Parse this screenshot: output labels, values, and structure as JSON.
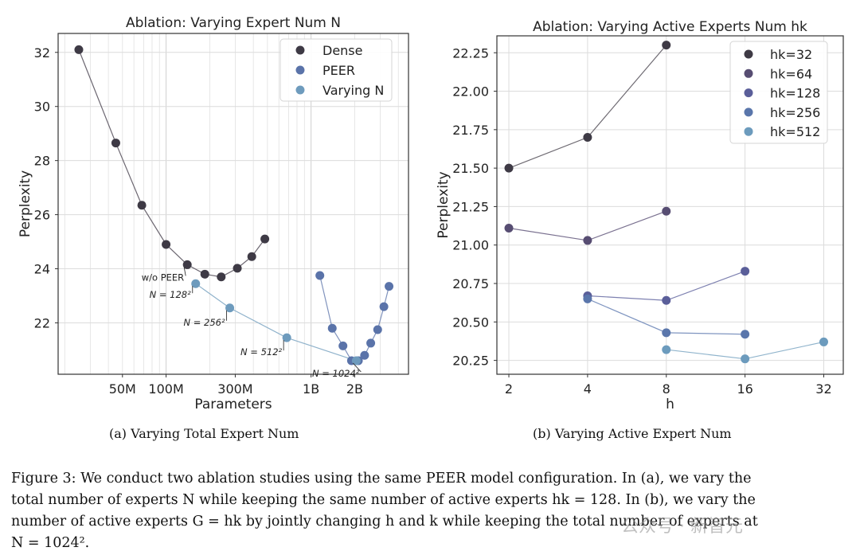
{
  "chart_data": [
    {
      "type": "scatter",
      "title": "Ablation: Varying Expert Num N",
      "xlabel": "Parameters",
      "ylabel": "Perplexity",
      "xscale": "log",
      "xlim": [
        18000000,
        4700000000
      ],
      "ylim": [
        20.1,
        32.7
      ],
      "yticks": [
        22,
        24,
        26,
        28,
        30,
        32
      ],
      "xticks": [
        {
          "value": 50000000,
          "label": "50M"
        },
        {
          "value": 100000000,
          "label": "100M"
        },
        {
          "value": 300000000,
          "label": "300M"
        },
        {
          "value": 1000000000,
          "label": "1B"
        },
        {
          "value": 2000000000,
          "label": "2B"
        }
      ],
      "grid": true,
      "legend_position": "top-right",
      "series": [
        {
          "name": "Dense",
          "color": "#3e3a45",
          "line_color": "#6b6670",
          "x": [
            25000000,
            45000000,
            68000000,
            100000000,
            140000000,
            185000000,
            240000000,
            310000000,
            390000000,
            480000000
          ],
          "y": [
            32.1,
            28.65,
            26.35,
            24.9,
            24.15,
            23.8,
            23.7,
            24.02,
            24.45,
            25.1
          ]
        },
        {
          "name": "PEER",
          "color": "#5a73a9",
          "line_color": "#8093bd",
          "x": [
            1150000000,
            1400000000,
            1660000000,
            1900000000,
            2120000000,
            2340000000,
            2580000000,
            2880000000,
            3180000000,
            3450000000
          ],
          "y": [
            23.75,
            21.8,
            21.15,
            20.6,
            20.6,
            20.8,
            21.25,
            21.75,
            22.6,
            23.35
          ]
        },
        {
          "name": "Varying N",
          "color": "#6e9bbd",
          "line_color": "#8fb2cb",
          "x": [
            160000000,
            275000000,
            680000000,
            2050000000
          ],
          "y": [
            23.45,
            22.55,
            21.45,
            20.6
          ]
        }
      ],
      "annotations": [
        {
          "text": "w/o PEER",
          "target_series": "Dense",
          "target_index": 4
        },
        {
          "text": "N = 128²",
          "target_series": "Varying N",
          "target_index": 0
        },
        {
          "text": "N = 256²",
          "target_series": "Varying N",
          "target_index": 1
        },
        {
          "text": "N = 512²",
          "target_series": "Varying N",
          "target_index": 2
        },
        {
          "text": "N = 1024²",
          "target_series": "Varying N",
          "target_index": 3
        }
      ]
    },
    {
      "type": "line",
      "title": "Ablation: Varying Active Experts Num hk",
      "xlabel": "h",
      "ylabel": "Perplexity",
      "xscale": "log2",
      "xlim": [
        1.8,
        38
      ],
      "ylim": [
        20.16,
        22.36
      ],
      "xticks": [
        2,
        4,
        8,
        16,
        32
      ],
      "yticks": [
        20.25,
        20.5,
        20.75,
        21.0,
        21.25,
        21.5,
        21.75,
        22.0,
        22.25
      ],
      "ytick_labels": [
        "20.25",
        "20.50",
        "20.75",
        "21.00",
        "21.25",
        "21.50",
        "21.75",
        "22.00",
        "22.25"
      ],
      "grid": true,
      "legend_position": "top-right",
      "series": [
        {
          "name": "hk=32",
          "color": "#3e3a45",
          "line_color": "#6e6a72",
          "x": [
            2,
            4,
            8
          ],
          "y": [
            21.5,
            21.7,
            22.3
          ]
        },
        {
          "name": "hk=64",
          "color": "#574d72",
          "line_color": "#7a7190",
          "x": [
            2,
            4,
            8
          ],
          "y": [
            21.11,
            21.03,
            21.22
          ]
        },
        {
          "name": "hk=128",
          "color": "#5a5e99",
          "line_color": "#7d80b0",
          "x": [
            4,
            8,
            16
          ],
          "y": [
            20.67,
            20.64,
            20.83
          ]
        },
        {
          "name": "hk=256",
          "color": "#5a76ab",
          "line_color": "#7f95c0",
          "x": [
            4,
            8,
            16
          ],
          "y": [
            20.65,
            20.43,
            20.42
          ]
        },
        {
          "name": "hk=512",
          "color": "#6c9bbd",
          "line_color": "#90b4cc",
          "x": [
            8,
            16,
            32
          ],
          "y": [
            20.32,
            20.26,
            20.37
          ]
        }
      ]
    }
  ],
  "subcaptions": {
    "a": "(a) Varying Total Expert Num",
    "b": "(b) Varying Active Expert Num"
  },
  "caption_lines": [
    "Figure 3: We conduct two ablation studies using the same PEER model configuration. In (a), we vary the",
    "total number of experts N while keeping the same number of active experts hk = 128. In (b), we vary the",
    "number of active experts G = hk by jointly changing h and k while keeping the total number of experts at",
    "N = 1024²."
  ],
  "watermark": "公众号 · 新智元"
}
